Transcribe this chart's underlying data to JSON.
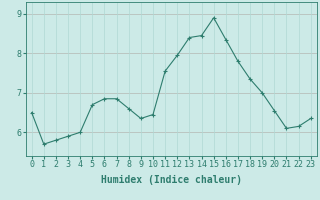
{
  "x": [
    0,
    1,
    2,
    3,
    4,
    5,
    6,
    7,
    8,
    9,
    10,
    11,
    12,
    13,
    14,
    15,
    16,
    17,
    18,
    19,
    20,
    21,
    22,
    23
  ],
  "y": [
    6.5,
    5.7,
    5.8,
    5.9,
    6.0,
    6.7,
    6.85,
    6.85,
    6.6,
    6.35,
    6.45,
    7.55,
    7.95,
    8.4,
    8.45,
    8.9,
    8.35,
    7.8,
    7.35,
    7.0,
    6.55,
    6.1,
    6.15,
    6.35
  ],
  "line_color": "#2e7d6e",
  "marker": "+",
  "marker_size": 3,
  "marker_linewidth": 0.8,
  "bg_color": "#cceae7",
  "grid_color": "#b0d8d4",
  "xlabel": "Humidex (Indice chaleur)",
  "xlabel_fontsize": 7,
  "tick_fontsize": 6,
  "xlim": [
    -0.5,
    23.5
  ],
  "ylim": [
    5.4,
    9.3
  ],
  "yticks": [
    6,
    7,
    8,
    9
  ],
  "xticks": [
    0,
    1,
    2,
    3,
    4,
    5,
    6,
    7,
    8,
    9,
    10,
    11,
    12,
    13,
    14,
    15,
    16,
    17,
    18,
    19,
    20,
    21,
    22,
    23
  ]
}
